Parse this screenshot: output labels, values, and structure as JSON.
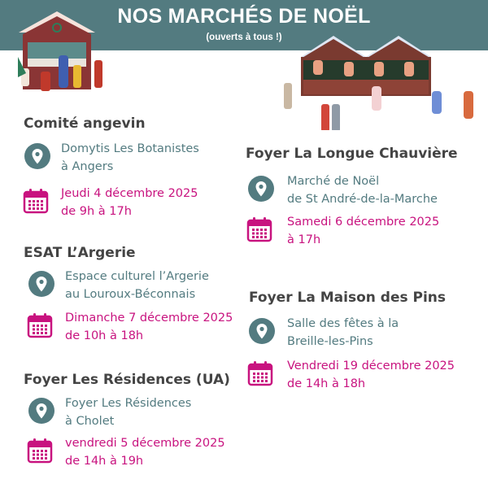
{
  "header": {
    "title": "NOS MARCHÉS DE NOËL",
    "subtitle": "(ouverts à tous !)"
  },
  "colors": {
    "banner": "#537b80",
    "address": "#537b80",
    "date": "#c8137f",
    "heading": "#444444"
  },
  "markets": [
    {
      "name": "Comité angevin",
      "address": [
        "Domytis Les Botanistes",
        "à Angers"
      ],
      "date": [
        "Jeudi 4 décembre 2025",
        "de 9h à 17h"
      ]
    },
    {
      "name": "ESAT L’Argerie",
      "address": [
        "Espace culturel l’Argerie",
        "au Louroux-Béconnais"
      ],
      "date": [
        "Dimanche 7 décembre 2025",
        "de 10h à 18h"
      ]
    },
    {
      "name": "Foyer Les Résidences (UA)",
      "address": [
        "Foyer Les Résidences",
        "à Cholet"
      ],
      "date": [
        "vendredi 5 décembre 2025",
        "de 14h à 19h"
      ]
    },
    {
      "name": "Foyer La Longue Chauvière",
      "address": [
        "Marché de Noël",
        "de St André-de-la-Marche"
      ],
      "date": [
        "Samedi 6 décembre 2025",
        "à 17h"
      ]
    },
    {
      "name": "Foyer La Maison des Pins",
      "address": [
        "Salle des fêtes à la",
        "Breille-les-Pins"
      ],
      "date": [
        "Vendredi 19 décembre 2025",
        "de 14h à 18h"
      ]
    }
  ]
}
